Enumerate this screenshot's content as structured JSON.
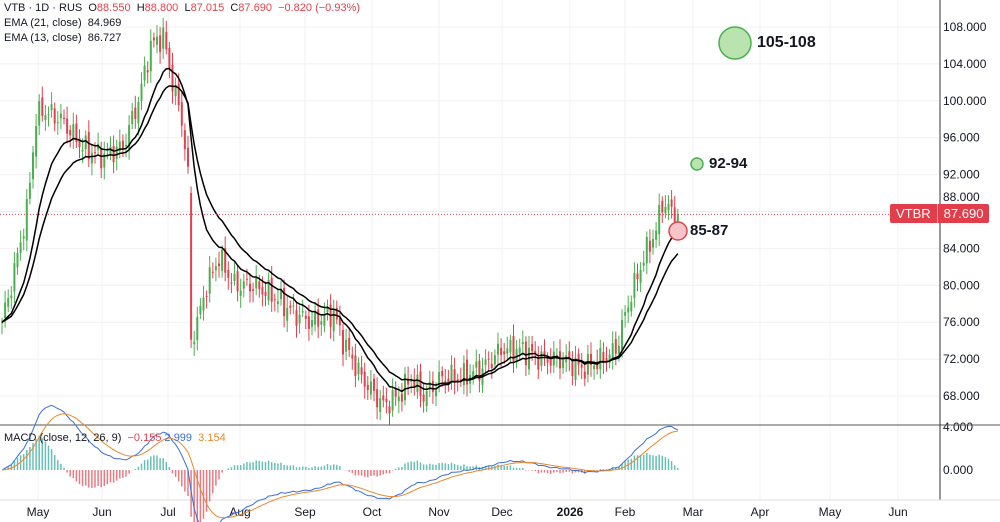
{
  "header": {
    "symbol": "VTB · 1D · RUS",
    "open_label": "O",
    "open": "88.550",
    "high_label": "H",
    "high": "88.800",
    "low_label": "L",
    "low": "87.015",
    "close_label": "C",
    "close": "87.690",
    "change": "−0.820 (−0.93%)",
    "ema21": "EMA (21, close)",
    "ema21_val": "84.969",
    "ema13": "EMA (13, close)",
    "ema13_val": "86.727"
  },
  "macd": {
    "label": "MACD (close, 12, 26, 9)",
    "hist": "−0.155",
    "macd": "2.999",
    "signal": "3.154"
  },
  "price_tag": {
    "ticker": "VTBR",
    "price": "87.690"
  },
  "targets": [
    {
      "label": "105-108",
      "price": 106.5,
      "color": "#b9e4b0"
    },
    {
      "label": "92-94",
      "price": 93,
      "color": "#b9e4b0"
    },
    {
      "label": "85-87",
      "price": 86,
      "color": "#f7c5c9"
    }
  ],
  "colors": {
    "up": "#26a69a",
    "up_alt": "#4caf50",
    "down": "#e0434f",
    "ema": "#000000",
    "macd": "#3c6fd8",
    "signal": "#e8892d"
  },
  "chart_data": {
    "type": "candlestick",
    "title": "VTB · 1D · RUS",
    "y_ticks": [
      "108.000",
      "104.000",
      "100.000",
      "96.000",
      "92.000",
      "88.000",
      "84.000",
      "80.000",
      "76.000",
      "72.000",
      "68.000"
    ],
    "ylim": [
      66,
      110
    ],
    "macd_ticks": [
      "4.000",
      "0.000"
    ],
    "x_ticks": [
      "May",
      "Jun",
      "Jul",
      "Aug",
      "Sep",
      "Oct",
      "Nov",
      "Dec",
      "2026",
      "Feb",
      "Mar",
      "Apr",
      "May",
      "Jun"
    ],
    "path_day_close": [
      [
        0,
        76
      ],
      [
        3,
        80
      ],
      [
        8,
        88
      ],
      [
        11,
        98
      ],
      [
        13,
        99
      ],
      [
        19,
        98
      ],
      [
        26,
        95
      ],
      [
        32,
        94
      ],
      [
        39,
        95
      ],
      [
        44,
        100
      ],
      [
        48,
        106
      ],
      [
        52,
        107
      ],
      [
        55,
        102
      ],
      [
        58,
        98
      ],
      [
        60,
        92
      ],
      [
        61,
        74
      ],
      [
        63,
        76
      ],
      [
        66,
        80
      ],
      [
        70,
        83
      ],
      [
        75,
        80
      ],
      [
        81,
        80
      ],
      [
        87,
        79
      ],
      [
        94,
        77
      ],
      [
        100,
        76
      ],
      [
        107,
        77
      ],
      [
        110,
        74
      ],
      [
        116,
        70
      ],
      [
        123,
        67
      ],
      [
        128,
        68
      ],
      [
        132,
        70
      ],
      [
        136,
        68
      ],
      [
        142,
        70
      ],
      [
        148,
        70
      ],
      [
        155,
        71
      ],
      [
        161,
        73
      ],
      [
        168,
        73
      ],
      [
        174,
        72
      ],
      [
        181,
        72
      ],
      [
        187,
        71
      ],
      [
        194,
        72
      ],
      [
        198,
        73
      ],
      [
        202,
        78
      ],
      [
        207,
        83
      ],
      [
        211,
        86
      ],
      [
        213,
        89
      ],
      [
        216,
        88
      ],
      [
        218,
        87.69
      ]
    ]
  }
}
